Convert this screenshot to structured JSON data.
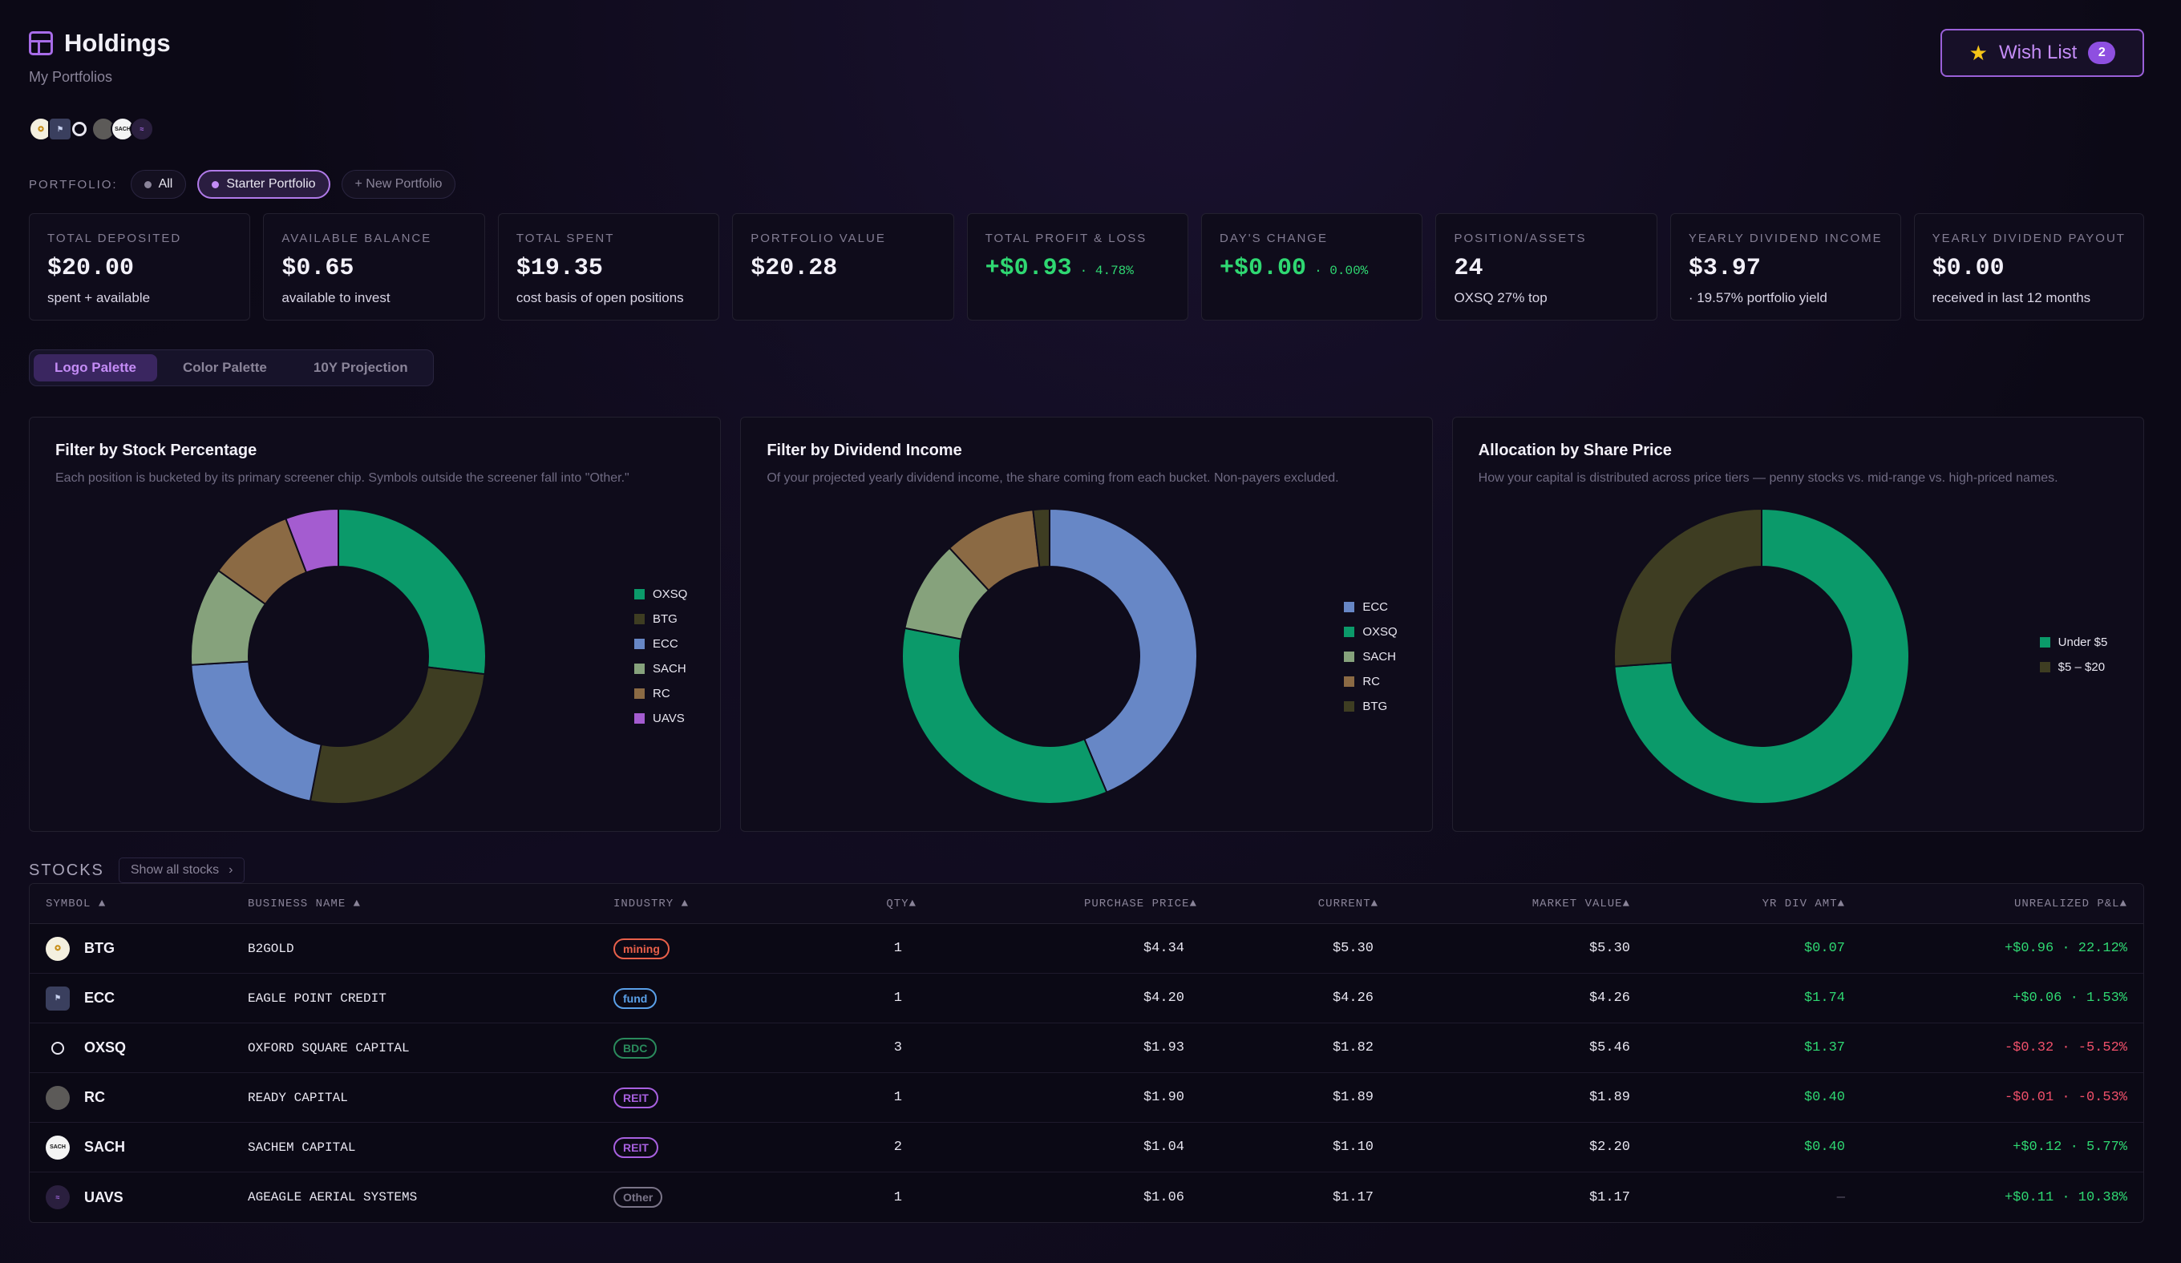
{
  "header": {
    "title": "Holdings",
    "subtitle": "My Portfolios",
    "wishlist_label": "Wish List",
    "wishlist_count": "2"
  },
  "logos": [
    "BTG",
    "ECC",
    "OXSQ",
    "RC",
    "SACH",
    "UAVS"
  ],
  "portfolio": {
    "label": "PORTFOLIO:",
    "options": [
      "All",
      "Starter Portfolio",
      "+ New Portfolio"
    ],
    "selected": "Starter Portfolio"
  },
  "stats": [
    {
      "label": "Total Deposited",
      "value": "$20.00",
      "sub": "spent + available"
    },
    {
      "label": "Available Balance",
      "value": "$0.65",
      "sub": "available to invest"
    },
    {
      "label": "Total Spent",
      "value": "$19.35",
      "sub": "cost basis of open positions"
    },
    {
      "label": "Portfolio Value",
      "value": "$20.28",
      "sub": ""
    },
    {
      "label": "Total Profit & Loss",
      "value": "+$0.93",
      "pct": "· 4.78%",
      "sub": ""
    },
    {
      "label": "Day's Change",
      "value": "+$0.00",
      "pct": "· 0.00%",
      "sub": ""
    },
    {
      "label": "Position/Assets",
      "value": "24",
      "sub": "OXSQ 27% top"
    },
    {
      "label": "Yearly Dividend Income",
      "value": "$3.97",
      "sub": "· 19.57% portfolio yield"
    },
    {
      "label": "Yearly Dividend Payout",
      "value": "$0.00",
      "sub": "received in last 12 months"
    }
  ],
  "tabs": [
    "Logo Palette",
    "Color Palette",
    "10Y Projection"
  ],
  "active_tab": "Logo Palette",
  "colors": {
    "OXSQ": "#0b9a6a",
    "BTG": "#3e3d22",
    "ECC": "#6787c6",
    "SACH": "#86a27c",
    "RC": "#8b6a44",
    "UAVS": "#a45cd0",
    "Under $5": "#0b9a6a",
    "$5 – $20": "#3e3d22"
  },
  "charts": [
    {
      "title": "Filter by Stock Percentage",
      "description": "Each position is bucketed by its primary screener chip. Symbols outside the screener fall into \"Other.\""
    },
    {
      "title": "Filter by Dividend Income",
      "description": "Of your projected yearly dividend income, the share coming from each bucket. Non-payers excluded."
    },
    {
      "title": "Allocation by Share Price",
      "description": "How your capital is distributed across price tiers — penny stocks vs. mid-range vs. high-priced names."
    }
  ],
  "chart_data": [
    {
      "type": "pie",
      "title": "Filter by Stock Percentage",
      "categories": [
        "OXSQ",
        "BTG",
        "ECC",
        "SACH",
        "RC",
        "UAVS"
      ],
      "values": [
        26.9,
        26.1,
        21.0,
        10.8,
        9.3,
        5.8
      ]
    },
    {
      "type": "pie",
      "title": "Filter by Dividend Income",
      "categories": [
        "ECC",
        "OXSQ",
        "SACH",
        "RC",
        "BTG"
      ],
      "values": [
        43.8,
        34.5,
        10.1,
        10.1,
        1.8
      ]
    },
    {
      "type": "pie",
      "title": "Allocation by Share Price",
      "categories": [
        "Under $5",
        "$5 – $20"
      ],
      "values": [
        73.9,
        26.1
      ]
    }
  ],
  "stocks": {
    "label": "STOCKS",
    "show_all": "Show all stocks",
    "columns": [
      "SYMBOL",
      "BUSINESS NAME",
      "INDUSTRY",
      "QTY",
      "PURCHASE PRICE",
      "CURRENT",
      "MARKET VALUE",
      "YR DIV AMT",
      "UNREALIZED P&L"
    ],
    "rows": [
      {
        "symbol": "BTG",
        "name": "B2GOLD",
        "industry": "mining",
        "industry_color": "#e8604a",
        "qty": "1",
        "purchase": "$4.34",
        "current": "$5.30",
        "market": "$5.30",
        "div": "$0.07",
        "pnl": "+$0.96",
        "pnl_pct": "· 22.12%",
        "pnl_sign": "pos"
      },
      {
        "symbol": "ECC",
        "name": "EAGLE POINT CREDIT",
        "industry": "fund",
        "industry_color": "#5aa0e8",
        "qty": "1",
        "purchase": "$4.20",
        "current": "$4.26",
        "market": "$4.26",
        "div": "$1.74",
        "pnl": "+$0.06",
        "pnl_pct": "· 1.53%",
        "pnl_sign": "pos"
      },
      {
        "symbol": "OXSQ",
        "name": "OXFORD SQUARE CAPITAL",
        "industry": "BDC",
        "industry_color": "#2a8a5c",
        "qty": "3",
        "purchase": "$1.93",
        "current": "$1.82",
        "market": "$5.46",
        "div": "$1.37",
        "pnl": "-$0.32",
        "pnl_pct": "· -5.52%",
        "pnl_sign": "neg"
      },
      {
        "symbol": "RC",
        "name": "READY CAPITAL",
        "industry": "REIT",
        "industry_color": "#a860e0",
        "qty": "1",
        "purchase": "$1.90",
        "current": "$1.89",
        "market": "$1.89",
        "div": "$0.40",
        "pnl": "-$0.01",
        "pnl_pct": "· -0.53%",
        "pnl_sign": "neg"
      },
      {
        "symbol": "SACH",
        "name": "SACHEM CAPITAL",
        "industry": "REIT",
        "industry_color": "#a860e0",
        "qty": "2",
        "purchase": "$1.04",
        "current": "$1.10",
        "market": "$2.20",
        "div": "$0.40",
        "pnl": "+$0.12",
        "pnl_pct": "· 5.77%",
        "pnl_sign": "pos"
      },
      {
        "symbol": "UAVS",
        "name": "AGEAGLE AERIAL SYSTEMS",
        "industry": "Other",
        "industry_color": "#7a7488",
        "qty": "1",
        "purchase": "$1.06",
        "current": "$1.17",
        "market": "$1.17",
        "div": "—",
        "pnl": "+$0.11",
        "pnl_pct": "· 10.38%",
        "pnl_sign": "pos"
      }
    ]
  }
}
